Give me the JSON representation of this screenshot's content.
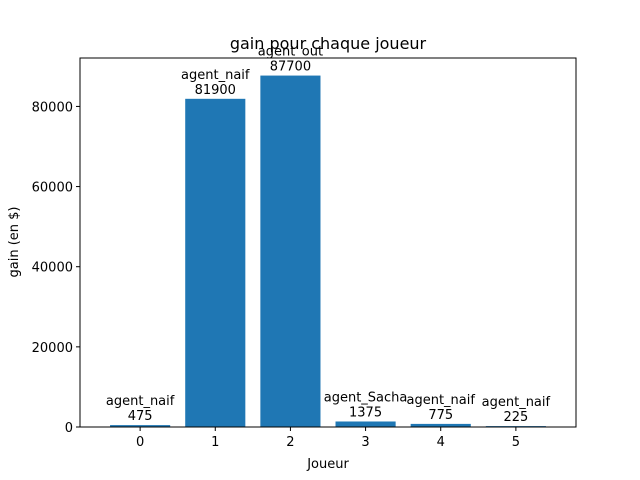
{
  "chart_data": {
    "type": "bar",
    "title": "gain pour chaque joueur",
    "xlabel": "Joueur",
    "ylabel": "gain (en $)",
    "categories": [
      "0",
      "1",
      "2",
      "3",
      "4",
      "5"
    ],
    "values": [
      475,
      81900,
      87700,
      1375,
      775,
      225
    ],
    "bar_labels": [
      [
        "agent_naif",
        "475"
      ],
      [
        "agent_naif",
        "81900"
      ],
      [
        "agent_out",
        "87700"
      ],
      [
        "agent_Sacha",
        "1375"
      ],
      [
        "agent_naif",
        "775"
      ],
      [
        "agent_naif",
        "225"
      ]
    ],
    "yticks": [
      0,
      20000,
      40000,
      60000,
      80000
    ],
    "ylim": [
      0,
      92085
    ],
    "xlim": [
      -0.8,
      5.8
    ],
    "bar_width": 0.8,
    "grid": false,
    "colors": {
      "bar": "#1f77b4",
      "axis": "#000000"
    }
  }
}
